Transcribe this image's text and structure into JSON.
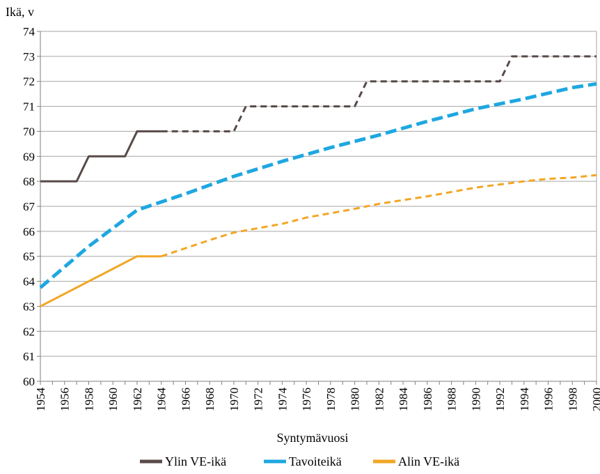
{
  "chart_data": {
    "type": "line",
    "ylabel": "Ikä, v",
    "xlabel": "Syntymävuosi",
    "xlim": [
      1954,
      2000
    ],
    "ylim": [
      60,
      74
    ],
    "x_ticks": [
      1954,
      1956,
      1958,
      1960,
      1962,
      1964,
      1966,
      1968,
      1970,
      1972,
      1974,
      1976,
      1978,
      1980,
      1982,
      1984,
      1986,
      1988,
      1990,
      1992,
      1994,
      1996,
      1998,
      2000
    ],
    "y_ticks": [
      60,
      61,
      62,
      63,
      64,
      65,
      66,
      67,
      68,
      69,
      70,
      71,
      72,
      73,
      74
    ],
    "grid": "horizontal",
    "legend_position": "bottom",
    "series": [
      {
        "name": "Ylin VE-ikä",
        "color": "#574a47",
        "style": "solid-then-dashed",
        "dashed_from_x": 1964,
        "x": [
          1954,
          1957,
          1958,
          1961,
          1962,
          1964,
          1970,
          1971,
          1980,
          1981,
          1992,
          1993,
          2000
        ],
        "y": [
          68,
          68,
          69,
          69,
          70,
          70,
          70,
          71,
          71,
          72,
          72,
          73,
          73
        ]
      },
      {
        "name": "Tavoiteikä",
        "color": "#1ea7e1",
        "style": "dashed",
        "x": [
          1954,
          1958,
          1962,
          1966,
          1970,
          1974,
          1978,
          1982,
          1986,
          1990,
          1994,
          1998,
          2000
        ],
        "y": [
          63.75,
          65.4,
          66.85,
          67.5,
          68.2,
          68.8,
          69.35,
          69.85,
          70.4,
          70.9,
          71.3,
          71.75,
          71.9
        ]
      },
      {
        "name": "Alin VE-ikä",
        "color": "#f2a625",
        "style": "solid-then-dashed",
        "dashed_from_x": 1964,
        "x": [
          1954,
          1962,
          1964,
          1968,
          1970,
          1974,
          1976,
          1980,
          1982,
          1986,
          1990,
          1994,
          1996,
          1998,
          2000
        ],
        "y": [
          63,
          65,
          65,
          65.65,
          65.95,
          66.3,
          66.55,
          66.9,
          67.1,
          67.4,
          67.75,
          68.0,
          68.1,
          68.15,
          68.25
        ]
      }
    ]
  }
}
